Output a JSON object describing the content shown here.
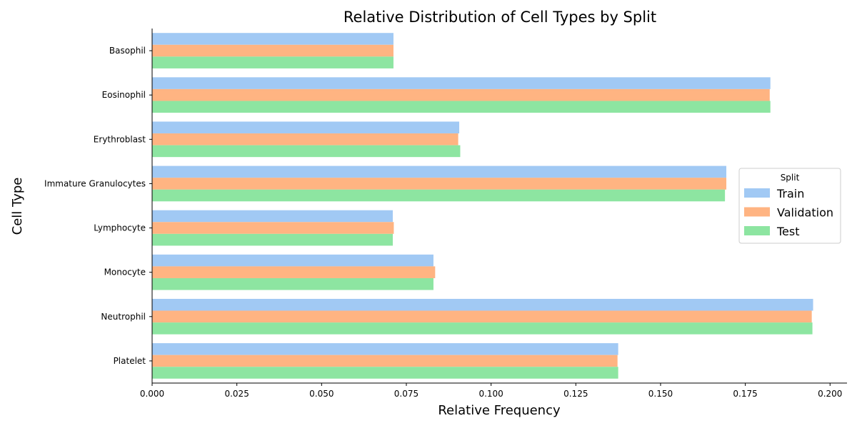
{
  "chart_data": {
    "type": "bar",
    "orientation": "horizontal",
    "title": "Relative Distribution of Cell Types by Split",
    "xlabel": "Relative Frequency",
    "ylabel": "Cell Type",
    "xlim": [
      0,
      0.205
    ],
    "xticks": [
      0.0,
      0.025,
      0.05,
      0.075,
      0.1,
      0.125,
      0.15,
      0.175,
      0.2
    ],
    "xtick_labels": [
      "0.000",
      "0.025",
      "0.050",
      "0.075",
      "0.100",
      "0.125",
      "0.150",
      "0.175",
      "0.200"
    ],
    "categories": [
      "Basophil",
      "Eosinophil",
      "Erythroblast",
      "Immature Granulocytes",
      "Lymphocyte",
      "Monocyte",
      "Neutrophil",
      "Platelet"
    ],
    "legend": {
      "title": "Split",
      "position": "center-right"
    },
    "grid": false,
    "series": [
      {
        "name": "Train",
        "color": "#a1c9f4",
        "values": [
          0.0712,
          0.1824,
          0.0906,
          0.1694,
          0.071,
          0.083,
          0.195,
          0.1375
        ]
      },
      {
        "name": "Validation",
        "color": "#ffb482",
        "values": [
          0.0712,
          0.1822,
          0.0903,
          0.1694,
          0.0713,
          0.0835,
          0.1946,
          0.1373
        ]
      },
      {
        "name": "Test",
        "color": "#8de5a1",
        "values": [
          0.0712,
          0.1824,
          0.0909,
          0.169,
          0.071,
          0.083,
          0.1948,
          0.1375
        ]
      }
    ]
  }
}
